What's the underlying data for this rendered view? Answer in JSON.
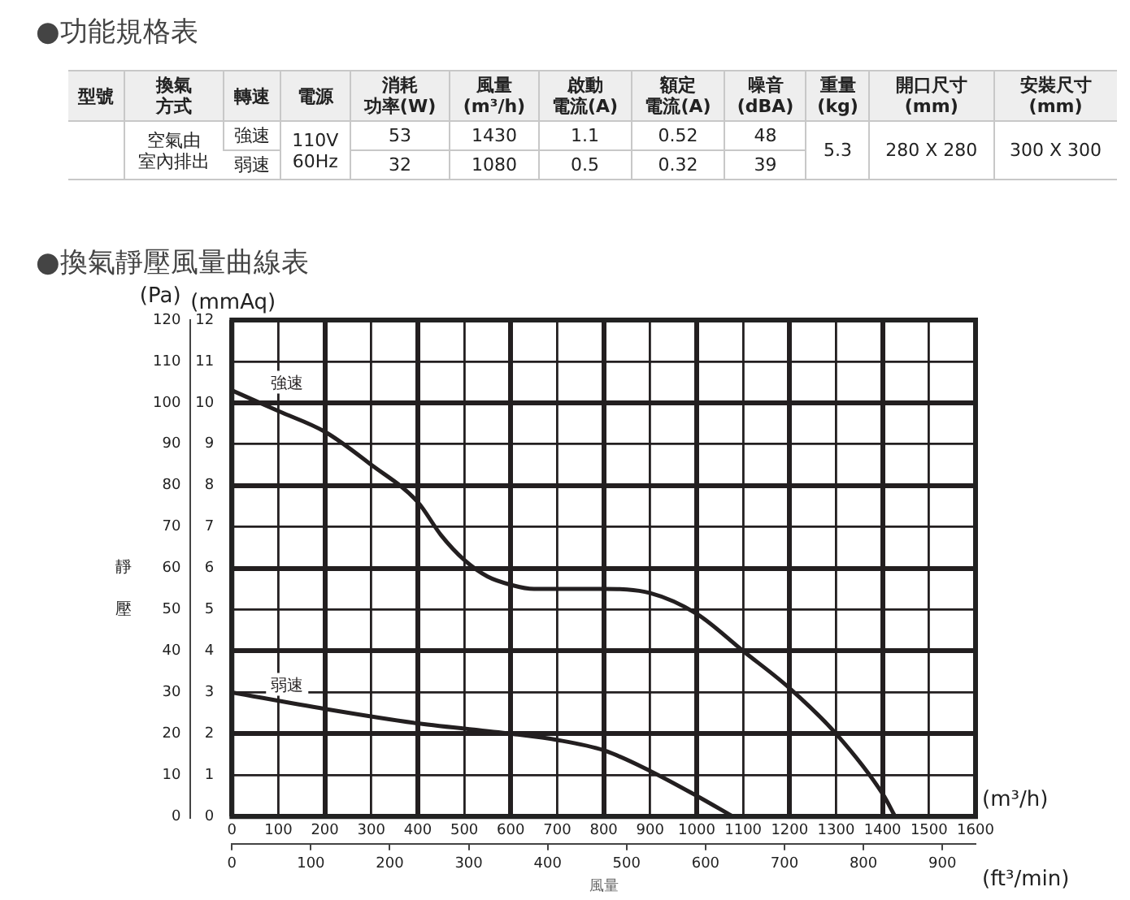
{
  "chart_data": [
    {
      "type": "other",
      "title": "●功能規格表",
      "annotations": [
        "型號",
        "換氣",
        "方式",
        "轉速",
        "電源",
        "消耗",
        "功率(W)",
        "風量",
        "(m³/h)",
        "啟動",
        "電流(A)",
        "額定",
        "電流(A)",
        "噪音",
        "(dBA)",
        "重量",
        "(kg)",
        "開口尺寸",
        "(mm)",
        "安裝尺寸",
        "(mm)",
        "空氣由",
        "室內排出",
        "強速",
        "110V",
        "60Hz",
        "53",
        "1430",
        "1.1",
        "0.52",
        "48",
        "5.3",
        "280 X 280",
        "300 X 300",
        "弱速",
        "32",
        "1080",
        "0.5",
        "0.32",
        "39"
      ]
    },
    {
      "type": "line",
      "title": "●換氣靜壓風量曲線表",
      "xlabel": "風量",
      "x2label": "(ft³/min)",
      "ylabel": "靜壓",
      "y2label": "(mmAq)",
      "annotations": [
        "(Pa)",
        "(m³/h)"
      ],
      "xlim": [
        0,
        1600
      ],
      "xticks": [
        0,
        100,
        200,
        300,
        400,
        500,
        600,
        700,
        800,
        900,
        1000,
        1100,
        1200,
        1300,
        1400,
        1500,
        1600
      ],
      "x2lim": [
        0,
        942
      ],
      "x2ticks": [
        0,
        100,
        200,
        300,
        400,
        500,
        600,
        700,
        800,
        900
      ],
      "ylim": [
        0,
        120
      ],
      "yticks": [
        0,
        10,
        20,
        30,
        40,
        50,
        60,
        70,
        80,
        90,
        100,
        110,
        120
      ],
      "y2lim": [
        0,
        12
      ],
      "y2ticks": [
        0,
        1,
        2,
        3,
        4,
        5,
        6,
        7,
        8,
        9,
        10,
        11,
        12
      ],
      "grid": true,
      "legend": false,
      "marker": "none",
      "line_style": "solid",
      "series": [
        {
          "name": "強速",
          "color": "#231f20",
          "x": [
            0,
            100,
            200,
            300,
            400,
            450,
            500,
            550,
            600,
            650,
            700,
            800,
            900,
            1000,
            1100,
            1200,
            1300,
            1400,
            1427
          ],
          "values": [
            103,
            98,
            93,
            85,
            76,
            68,
            62,
            58,
            56,
            55,
            55,
            55,
            54,
            49,
            40,
            31,
            20,
            5.5,
            0
          ]
        },
        {
          "name": "弱速",
          "color": "#231f20",
          "x": [
            0,
            200,
            400,
            600,
            700,
            800,
            900,
            1000,
            1078
          ],
          "values": [
            30,
            26,
            22.5,
            20,
            18.5,
            16,
            11,
            5,
            0
          ]
        }
      ]
    }
  ]
}
